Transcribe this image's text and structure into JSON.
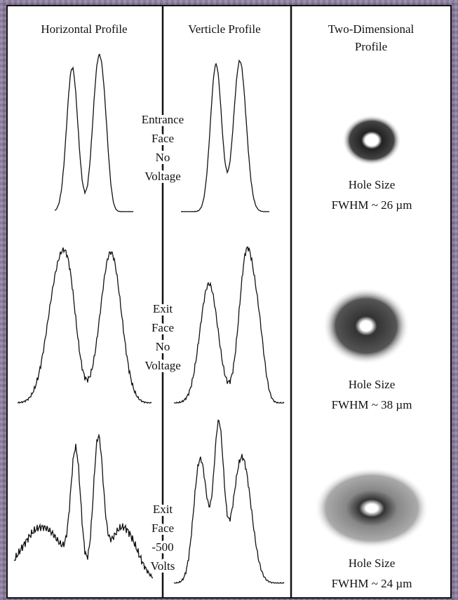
{
  "header": {
    "columns": [
      "Horizontal Profile",
      "Verticle Profile",
      [
        "Two-Dimensional",
        "Profile"
      ]
    ]
  },
  "rows": [
    {
      "labels": [
        "Entrance",
        "Face",
        "No",
        "Voltage"
      ],
      "hole_size": "Hole Size",
      "fwhm": "FWHM ~ 26 µm"
    },
    {
      "labels": [
        "Exit",
        "Face",
        "No",
        "Voltage"
      ],
      "hole_size": "Hole Size",
      "fwhm": "FWHM ~ 38 µm"
    },
    {
      "labels": [
        "Exit",
        "Face",
        "-500",
        "Volts"
      ],
      "hole_size": "Hole Size",
      "fwhm": "FWHM ~ 24 µm"
    }
  ]
}
